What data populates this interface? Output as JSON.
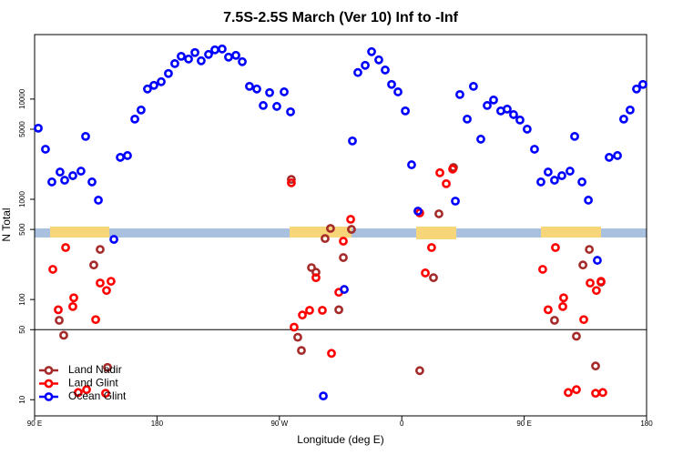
{
  "chart_data": {
    "type": "scatter",
    "title": "7.5S-2.5S March (Ver 10)   Inf to -Inf",
    "x_label": "Longitude (deg E)",
    "y_label": "N Total",
    "log_y": true,
    "xlim": [
      90,
      540
    ],
    "ylim": [
      6.9,
      44000
    ],
    "xticks": [
      {
        "value": 90,
        "label": "90 E"
      },
      {
        "value": 180,
        "label": "180"
      },
      {
        "value": 270,
        "label": "90 W"
      },
      {
        "value": 360,
        "label": "0"
      },
      {
        "value": 450,
        "label": "90 E"
      },
      {
        "value": 540,
        "label": "180"
      }
    ],
    "yticks": [
      10,
      50,
      100,
      500,
      1000,
      5000,
      10000
    ],
    "hline": 50,
    "legend": "bottom-left",
    "series": [
      {
        "name": "Land Nadir",
        "color": "#a52a2a",
        "x": [
          108.1,
          111.4,
          133.5,
          138.2,
          143.6,
          278.8,
          283.5,
          286.2,
          293.6,
          296.9,
          303.6,
          307.6,
          313.7,
          317.0,
          323.0,
          373.2,
          383.3,
          387.3,
          398.0,
          472.3,
          488.4,
          493.2,
          497.9,
          502.5,
          506.5
        ],
        "values": [
          62,
          44,
          221,
          316,
          21,
          1580,
          42,
          31,
          208,
          187,
          406,
          512,
          79,
          262,
          501,
          19.5,
          165,
          716,
          2080,
          62,
          43,
          221,
          316,
          21.7,
          149
        ]
      },
      {
        "name": "Land Glint",
        "color": "#ff0000",
        "x": [
          103.4,
          107.4,
          112.8,
          118.1,
          118.8,
          122.1,
          128.2,
          134.9,
          138.2,
          142.2,
          142.9,
          146.2,
          278.8,
          280.8,
          286.9,
          292.2,
          296.9,
          301.6,
          308.3,
          313.7,
          317.0,
          322.4,
          373.2,
          377.3,
          381.9,
          388.0,
          392.7,
          397.4,
          463.6,
          467.6,
          473.0,
          478.4,
          479.0,
          482.4,
          488.4,
          493.8,
          498.5,
          502.5,
          503.1,
          506.5,
          507.8
        ],
        "values": [
          200,
          79,
          330,
          85,
          104,
          11.8,
          12.6,
          63,
          146,
          11.6,
          123,
          152,
          1460,
          53,
          70,
          78,
          165,
          78,
          29,
          118,
          382,
          631,
          731,
          184,
          330,
          1840,
          1430,
          2000,
          200,
          79,
          330,
          85,
          104,
          11.8,
          12.6,
          63,
          146,
          11.6,
          123,
          152,
          11.8
        ]
      },
      {
        "name": "Ocean Glint",
        "color": "#0000ff",
        "x": [
          92.7,
          98.0,
          102.7,
          108.7,
          112.1,
          118.1,
          124.1,
          127.5,
          132.2,
          136.9,
          148.3,
          153.0,
          158.3,
          163.7,
          168.3,
          173.0,
          177.7,
          183.1,
          188.4,
          193.1,
          197.8,
          203.2,
          207.9,
          212.5,
          217.9,
          222.6,
          227.9,
          232.6,
          238.0,
          242.7,
          248.0,
          253.4,
          258.1,
          262.8,
          268.1,
          273.5,
          278.2,
          302.3,
          317.7,
          323.7,
          327.7,
          333.1,
          337.8,
          343.1,
          347.8,
          352.5,
          357.2,
          362.6,
          367.2,
          371.9,
          399.4,
          402.7,
          408.1,
          412.7,
          418.1,
          422.8,
          427.5,
          432.8,
          437.5,
          442.2,
          446.9,
          452.2,
          457.6,
          462.3,
          467.6,
          472.3,
          477.7,
          483.7,
          487.1,
          492.5,
          497.2,
          503.8,
          512.5,
          518.6,
          523.2,
          527.9,
          532.6,
          537.3
        ],
        "values": [
          5120,
          3160,
          1490,
          1870,
          1550,
          1720,
          1910,
          4240,
          1490,
          980,
          398,
          2620,
          2730,
          6310,
          7780,
          12600,
          13700,
          14900,
          18000,
          22600,
          26700,
          25100,
          29100,
          24100,
          27900,
          31000,
          31600,
          26200,
          27300,
          23600,
          13400,
          12600,
          8630,
          11600,
          8450,
          11800,
          7460,
          10.9,
          126,
          3820,
          18400,
          21700,
          29700,
          24600,
          19500,
          14000,
          11800,
          7620,
          2210,
          762,
          959,
          11100,
          6310,
          13400,
          3980,
          8630,
          9790,
          7620,
          7940,
          7000,
          6180,
          5010,
          3160,
          1490,
          1870,
          1550,
          1720,
          1910,
          4240,
          1490,
          980,
          246,
          2620,
          2730,
          6310,
          7780,
          12600,
          14000
        ]
      }
    ]
  }
}
